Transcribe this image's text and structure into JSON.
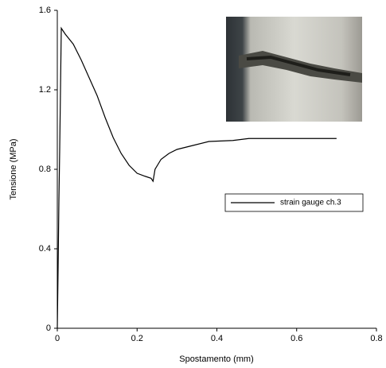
{
  "chart_data": {
    "type": "line",
    "xlabel": "Spostamento (mm)",
    "ylabel": "Tensione (MPa)",
    "xlim": [
      0,
      0.8
    ],
    "xticks": [
      0,
      0.2,
      0.4,
      0.6,
      0.8
    ],
    "ylim": [
      0,
      1.6
    ],
    "yticks": [
      0,
      0.4,
      0.8,
      1.2,
      1.6
    ],
    "legend": "right",
    "series": [
      {
        "name": "strain gauge ch.3",
        "color": "#000000",
        "x": [
          0,
          0.002,
          0.004,
          0.006,
          0.008,
          0.01,
          0.02,
          0.04,
          0.06,
          0.08,
          0.1,
          0.12,
          0.14,
          0.16,
          0.18,
          0.2,
          0.22,
          0.235,
          0.24,
          0.245,
          0.26,
          0.28,
          0.3,
          0.34,
          0.38,
          0.44,
          0.48,
          0.5,
          0.6,
          0.7
        ],
        "values": [
          0,
          0.3,
          0.64,
          0.9,
          1.2,
          1.51,
          1.48,
          1.43,
          1.35,
          1.26,
          1.17,
          1.06,
          0.96,
          0.88,
          0.82,
          0.78,
          0.765,
          0.755,
          0.74,
          0.8,
          0.85,
          0.88,
          0.9,
          0.92,
          0.94,
          0.945,
          0.955,
          0.955,
          0.955,
          0.955
        ]
      }
    ]
  }
}
